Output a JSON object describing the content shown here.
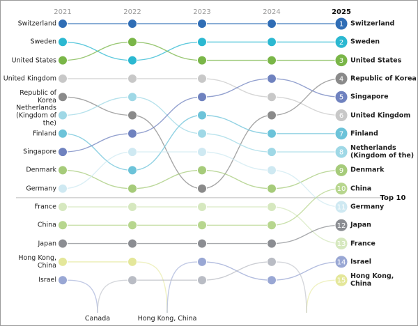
{
  "chart_data": {
    "type": "bump",
    "categories": [
      "2021",
      "2022",
      "2023",
      "2024",
      "2025"
    ],
    "series": [
      {
        "name": "Switzerland",
        "color": "#2f6db5",
        "values": [
          1,
          1,
          1,
          1,
          1
        ]
      },
      {
        "name": "Sweden",
        "color": "#2bb8d1",
        "values": [
          2,
          3,
          2,
          2,
          2
        ]
      },
      {
        "name": "United States",
        "color": "#7ab648",
        "values": [
          3,
          2,
          3,
          3,
          3
        ]
      },
      {
        "name": "United Kingdom",
        "color": "#c8c8c8",
        "values": [
          4,
          4,
          4,
          5,
          6
        ]
      },
      {
        "name": "Republic of Korea",
        "color": "#8a8a8a",
        "values": [
          5,
          6,
          10,
          6,
          4
        ]
      },
      {
        "name": "Netherlands (Kingdom of the)",
        "color": "#9fd8e6",
        "values": [
          6,
          5,
          7,
          8,
          8
        ]
      },
      {
        "name": "Finland",
        "color": "#6cc3d9",
        "values": [
          7,
          9,
          6,
          7,
          7
        ]
      },
      {
        "name": "Singapore",
        "color": "#6f82bf",
        "values": [
          8,
          7,
          5,
          4,
          5
        ]
      },
      {
        "name": "Denmark",
        "color": "#a6cb7a",
        "values": [
          9,
          10,
          9,
          10,
          9
        ]
      },
      {
        "name": "Germany",
        "color": "#cfe9f2",
        "values": [
          10,
          8,
          8,
          9,
          11
        ]
      },
      {
        "name": "France",
        "color": "#d6e8bf",
        "values": [
          11,
          11,
          11,
          11,
          13
        ]
      },
      {
        "name": "China",
        "color": "#b7d68e",
        "values": [
          12,
          12,
          12,
          12,
          10
        ]
      },
      {
        "name": "Japan",
        "color": "#8b8d92",
        "values": [
          13,
          13,
          13,
          13,
          12
        ]
      },
      {
        "name": "Hong Kong, China",
        "color": "#e4e79a",
        "values": [
          14,
          14,
          null,
          null,
          15
        ]
      },
      {
        "name": "Israel",
        "color": "#99a7d4",
        "values": [
          15,
          null,
          14,
          15,
          14
        ]
      },
      {
        "name": "Canada",
        "color": "#b9bcc4",
        "values": [
          null,
          15,
          15,
          14,
          null
        ]
      }
    ],
    "separator_label": "Top 10",
    "separator_after_rank": 10,
    "off_chart_labels": [
      "Canada",
      "Hong Kong, China"
    ]
  }
}
